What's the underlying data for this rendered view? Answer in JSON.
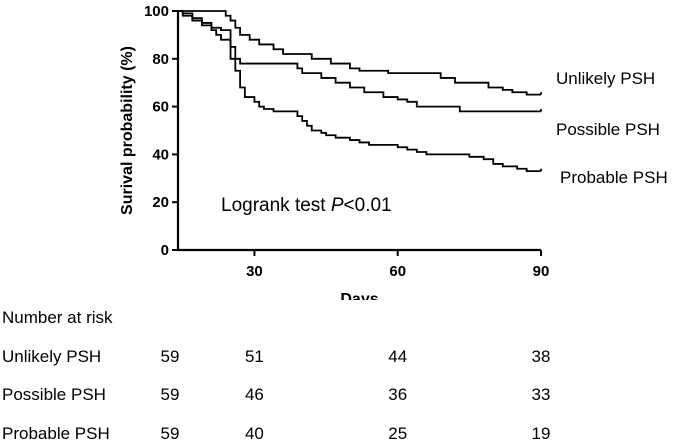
{
  "chart_data": {
    "type": "line",
    "step": true,
    "title": "",
    "xlabel": "Days",
    "ylabel": "Surival probability (%)",
    "xlim": [
      14,
      90
    ],
    "ylim": [
      0,
      100
    ],
    "xticks": [
      30,
      60,
      90
    ],
    "yticks": [
      0,
      20,
      40,
      60,
      80,
      100
    ],
    "grid": false,
    "annotation": {
      "text_before": "Logrank test ",
      "italic": "P",
      "text_after": "<0.01"
    },
    "series": [
      {
        "name": "Unlikely PSH",
        "end_mark": 66,
        "points": [
          [
            14,
            100
          ],
          [
            22,
            100
          ],
          [
            24,
            98
          ],
          [
            25,
            96
          ],
          [
            26,
            93
          ],
          [
            27,
            90
          ],
          [
            29,
            88
          ],
          [
            31,
            86
          ],
          [
            34,
            84
          ],
          [
            36,
            82
          ],
          [
            42,
            80
          ],
          [
            46,
            78
          ],
          [
            50,
            76
          ],
          [
            52,
            75
          ],
          [
            57,
            75
          ],
          [
            58,
            74
          ],
          [
            67,
            74
          ],
          [
            69,
            72
          ],
          [
            72,
            70
          ],
          [
            79,
            68
          ],
          [
            82,
            67
          ],
          [
            84,
            66
          ],
          [
            87,
            65
          ],
          [
            90,
            65
          ]
        ]
      },
      {
        "name": "Possible PSH",
        "end_mark": 59,
        "points": [
          [
            14,
            100
          ],
          [
            15,
            99
          ],
          [
            17,
            97
          ],
          [
            19,
            95
          ],
          [
            21,
            93
          ],
          [
            23,
            92
          ],
          [
            25,
            85
          ],
          [
            26,
            80
          ],
          [
            27,
            78
          ],
          [
            38,
            78
          ],
          [
            39,
            76
          ],
          [
            40,
            74
          ],
          [
            44,
            72
          ],
          [
            47,
            70
          ],
          [
            50,
            68
          ],
          [
            53,
            66
          ],
          [
            57,
            64
          ],
          [
            60,
            63
          ],
          [
            62,
            62
          ],
          [
            64,
            60
          ],
          [
            72,
            60
          ],
          [
            73,
            58
          ],
          [
            90,
            58
          ]
        ]
      },
      {
        "name": "Probable PSH",
        "end_mark": 34,
        "points": [
          [
            14,
            100
          ],
          [
            15,
            98
          ],
          [
            17,
            96
          ],
          [
            19,
            94
          ],
          [
            21,
            92
          ],
          [
            22,
            90
          ],
          [
            23,
            88
          ],
          [
            25,
            80
          ],
          [
            26,
            75
          ],
          [
            27,
            68
          ],
          [
            28,
            64
          ],
          [
            30,
            62
          ],
          [
            31,
            60
          ],
          [
            32,
            59
          ],
          [
            34,
            58
          ],
          [
            38,
            58
          ],
          [
            39,
            56
          ],
          [
            40,
            54
          ],
          [
            41,
            52
          ],
          [
            42,
            50
          ],
          [
            44,
            49
          ],
          [
            45,
            48
          ],
          [
            47,
            47
          ],
          [
            50,
            46
          ],
          [
            52,
            45
          ],
          [
            54,
            44
          ],
          [
            58,
            44
          ],
          [
            60,
            43
          ],
          [
            62,
            42
          ],
          [
            64,
            41
          ],
          [
            66,
            40
          ],
          [
            74,
            40
          ],
          [
            75,
            39
          ],
          [
            78,
            38
          ],
          [
            80,
            36
          ],
          [
            82,
            35
          ],
          [
            85,
            34
          ],
          [
            87,
            33
          ],
          [
            90,
            33
          ]
        ]
      }
    ]
  },
  "risk_table": {
    "title": "Number at risk",
    "rows": [
      {
        "label": "Unlikely PSH",
        "values": [
          59,
          51,
          44,
          38
        ]
      },
      {
        "label": "Possible PSH",
        "values": [
          59,
          46,
          36,
          33
        ]
      },
      {
        "label": "Probable PSH",
        "values": [
          59,
          40,
          25,
          19
        ]
      }
    ]
  }
}
